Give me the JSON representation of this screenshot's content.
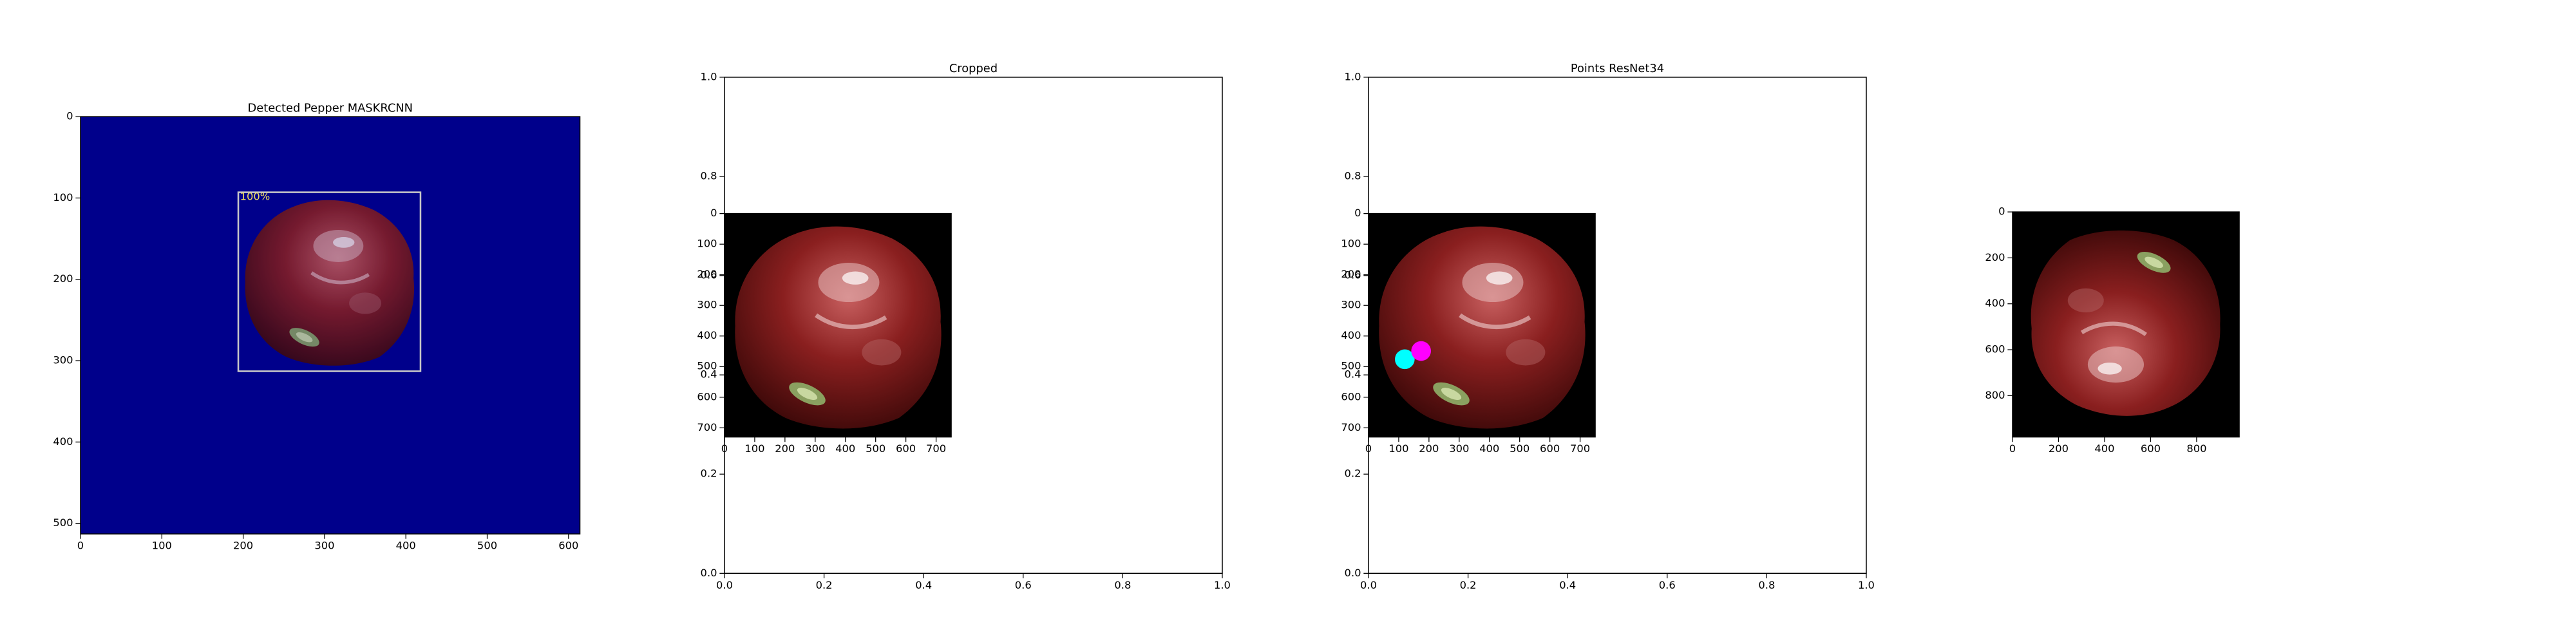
{
  "chart_data": [
    {
      "type": "image",
      "title": "Detected Pepper MASKRCNN",
      "xlim": [
        0,
        614
      ],
      "ylim": [
        513,
        0
      ],
      "xticks": [
        0,
        100,
        200,
        300,
        400,
        500,
        600
      ],
      "yticks": [
        0,
        100,
        200,
        300,
        400,
        500
      ],
      "box": {
        "x": [
          194,
          418
        ],
        "y": [
          93,
          313
        ]
      },
      "annotation": "100%"
    },
    {
      "type": "image",
      "title": "Cropped",
      "xlim": [
        0,
        1
      ],
      "ylim": [
        0,
        1
      ],
      "xticks": [
        {
          "value": 0,
          "label": "0.0"
        },
        0.2,
        0.4,
        0.6,
        0.8,
        {
          "value": 1,
          "label": "1.0"
        }
      ],
      "yticks": [
        {
          "value": 0,
          "label": "0.0"
        },
        0.2,
        0.4,
        0.6,
        0.8,
        {
          "value": 1,
          "label": "1.0"
        }
      ],
      "inset": {
        "xlim": [
          0,
          750
        ],
        "ylim": [
          730,
          0
        ],
        "xticks": [
          0,
          100,
          200,
          300,
          400,
          500,
          600,
          700
        ],
        "yticks": [
          0,
          100,
          200,
          300,
          400,
          500,
          600,
          700
        ]
      }
    },
    {
      "type": "image",
      "title": "Points ResNet34",
      "xlim": [
        0,
        1
      ],
      "ylim": [
        0,
        1
      ],
      "xticks": [
        {
          "value": 0,
          "label": "0.0"
        },
        0.2,
        0.4,
        0.6,
        0.8,
        {
          "value": 1,
          "label": "1.0"
        }
      ],
      "yticks": [
        {
          "value": 0,
          "label": "0.0"
        },
        0.2,
        0.4,
        0.6,
        0.8,
        {
          "value": 1,
          "label": "1.0"
        }
      ],
      "inset": {
        "xlim": [
          0,
          750
        ],
        "ylim": [
          730,
          0
        ],
        "xticks": [
          0,
          100,
          200,
          300,
          400,
          500,
          600,
          700
        ],
        "yticks": [
          0,
          100,
          200,
          300,
          400,
          500,
          600,
          700
        ],
        "points": [
          {
            "x": 120,
            "y": 476,
            "color": "#00ffff"
          },
          {
            "x": 174,
            "y": 449,
            "color": "#ff00ff"
          }
        ]
      }
    },
    {
      "type": "image",
      "xlim": [
        0,
        985
      ],
      "ylim": [
        980,
        0
      ],
      "xticks": [
        0,
        200,
        400,
        600,
        800
      ],
      "yticks": [
        0,
        200,
        400,
        600,
        800
      ]
    }
  ]
}
